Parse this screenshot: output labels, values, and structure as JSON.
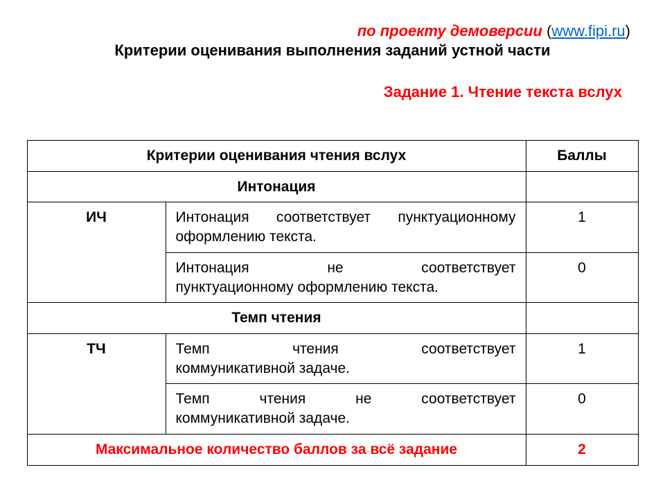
{
  "header": {
    "demo_prefix": "по проекту демоверсии ",
    "lp": "(",
    "link_text": "www.fipi.ru",
    "rp": ")",
    "title": "Критерии оценивания выполнения заданий устной части"
  },
  "task_title": "Задание 1. Чтение текста вслух",
  "table": {
    "col_criteria": "Критерии оценивания чтения вслух",
    "col_points": "Баллы",
    "section1": "Интонация",
    "ich_code": "ИЧ",
    "ich_1_line1": "Интонация соответствует пунктуационному",
    "ich_1_line2": "оформлению текста.",
    "ich_1_score": "1",
    "ich_0_line1": "Интонация не соответствует",
    "ich_0_line2": "пунктуационному оформлению текста.",
    "ich_0_score": "0",
    "section2": "Темп чтения",
    "tch_code": "ТЧ",
    "tch_1_line1": "Темп чтения соответствует",
    "tch_1_line2": "коммуникативной задаче.",
    "tch_1_score": "1",
    "tch_0_line1": "Темп чтения не соответствует",
    "tch_0_line2": "коммуникативной задаче.",
    "tch_0_score": "0",
    "max_label": "Максимальное количество баллов за всё задание",
    "max_points": "2"
  },
  "colors": {
    "red": "#ff0000",
    "link": "#0066cc",
    "text": "#000000",
    "bg": "#ffffff"
  }
}
